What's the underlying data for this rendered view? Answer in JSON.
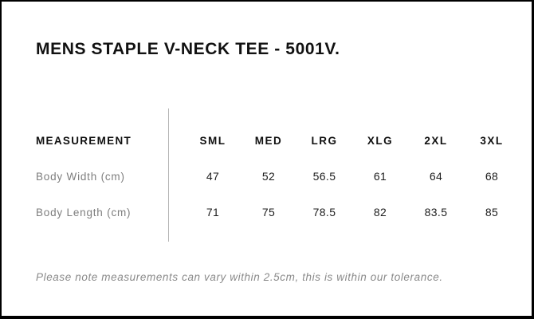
{
  "page": {
    "title": "MENS STAPLE V-NECK TEE - 5001V.",
    "note": "Please note measurements can vary within 2.5cm, this is within our tolerance."
  },
  "size_table": {
    "header_label": "MEASUREMENT",
    "columns": [
      "SML",
      "MED",
      "LRG",
      "XLG",
      "2XL",
      "3XL"
    ],
    "rows": [
      {
        "label": "Body Width (cm)",
        "values": [
          "47",
          "52",
          "56.5",
          "61",
          "64",
          "68"
        ]
      },
      {
        "label": "Body Length (cm)",
        "values": [
          "71",
          "75",
          "78.5",
          "82",
          "83.5",
          "85"
        ]
      }
    ]
  },
  "colors": {
    "page_border": "#000000",
    "title_text": "#111111",
    "header_text": "#111111",
    "row_label_text": "#7e7e7e",
    "value_text": "#1d1d1d",
    "divider": "#b5b5b5",
    "note_text": "#8a8a8a",
    "background": "#ffffff"
  }
}
